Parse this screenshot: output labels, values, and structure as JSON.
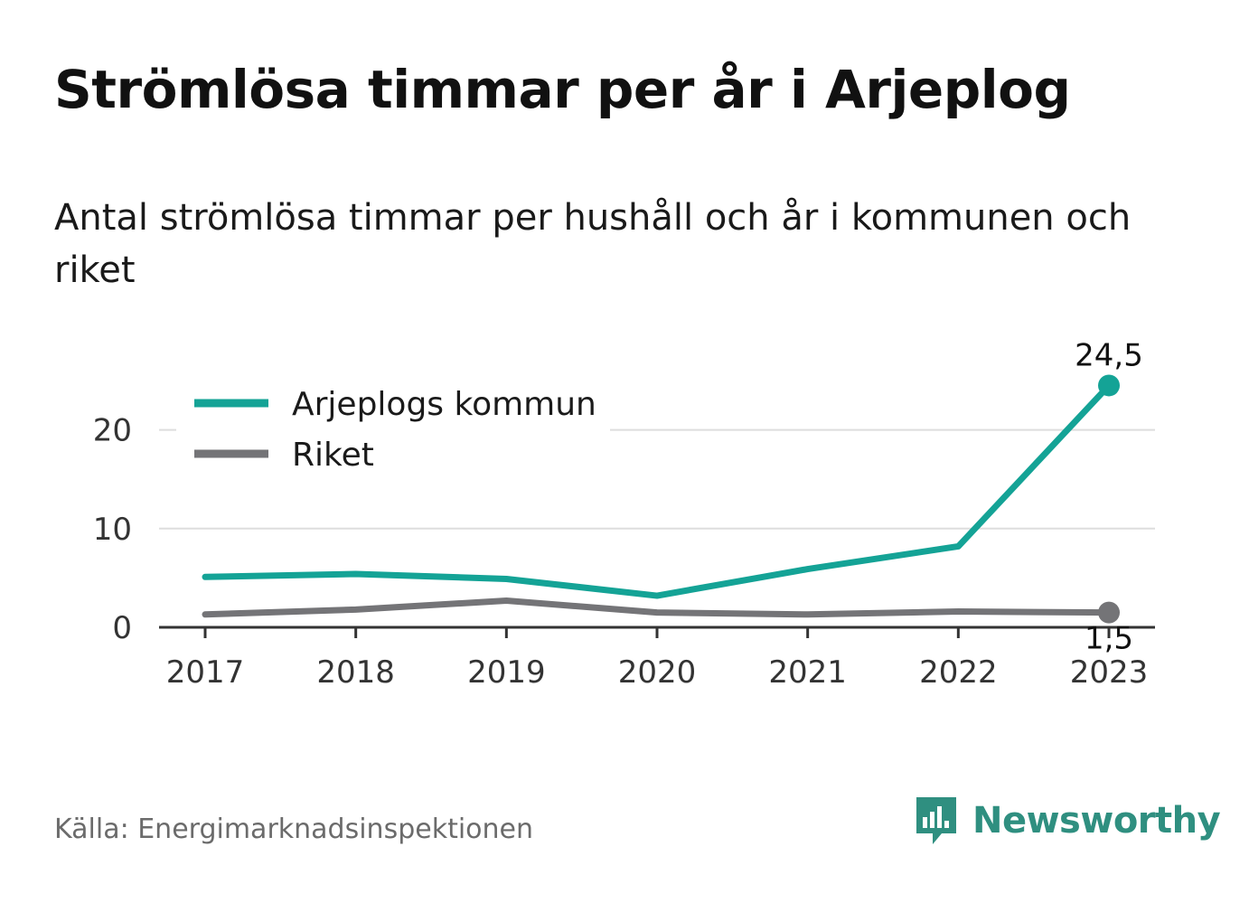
{
  "title": "Strömlösa timmar per år i Arjeplog",
  "subtitle": "Antal strömlösa timmar per hushåll och år i kommunen och riket",
  "source": "Källa: Energimarknadsinspektionen",
  "brand": "Newsworthy",
  "colors": {
    "kommun": "#14a396",
    "riket": "#747477",
    "grid": "#dddddd",
    "axis": "#333333",
    "brand": "#2f8f80"
  },
  "chart_data": {
    "type": "line",
    "x": [
      "2017",
      "2018",
      "2019",
      "2020",
      "2021",
      "2022",
      "2023"
    ],
    "series": [
      {
        "name": "Arjeplogs kommun",
        "values": [
          5.1,
          5.4,
          4.9,
          3.2,
          5.9,
          8.2,
          24.5
        ]
      },
      {
        "name": "Riket",
        "values": [
          1.3,
          1.8,
          2.7,
          1.5,
          1.3,
          1.6,
          1.5
        ]
      }
    ],
    "end_labels": [
      "24,5",
      "1,5"
    ],
    "yticks": [
      "0",
      "10",
      "20"
    ],
    "ylim": [
      0,
      25
    ],
    "grid": true,
    "legend": "top-left"
  }
}
